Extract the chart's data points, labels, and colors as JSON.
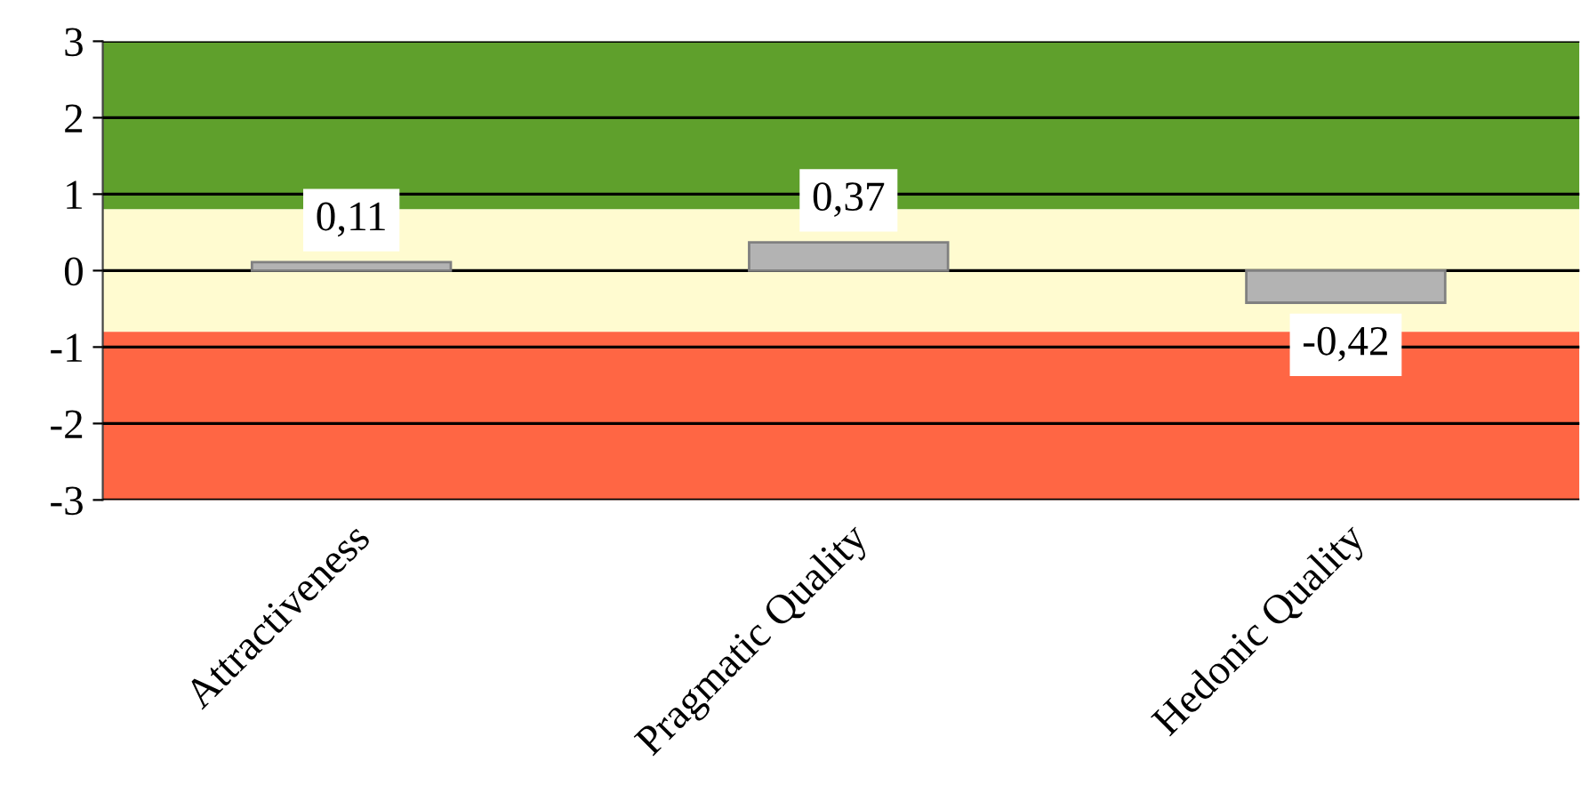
{
  "chart_data": {
    "type": "bar",
    "categories": [
      "Attractiveness",
      "Pragmatic Quality",
      "Hedonic Quality"
    ],
    "values": [
      0.11,
      0.37,
      -0.42
    ],
    "value_labels": [
      "0,11",
      "0,37",
      "-0,42"
    ],
    "color": "#b3b3b3",
    "ylim": [
      -3,
      3
    ],
    "yticks": [
      -3,
      -2,
      -1,
      0,
      1,
      2,
      3
    ],
    "grid": "y",
    "bands": [
      {
        "axis": "y",
        "from": 0.8,
        "to": 3,
        "color": "#5fa02c"
      },
      {
        "axis": "y",
        "from": -0.8,
        "to": 0.8,
        "color": "#fffbd0"
      },
      {
        "axis": "y",
        "from": -3,
        "to": -0.8,
        "color": "#ff6644"
      }
    ]
  }
}
